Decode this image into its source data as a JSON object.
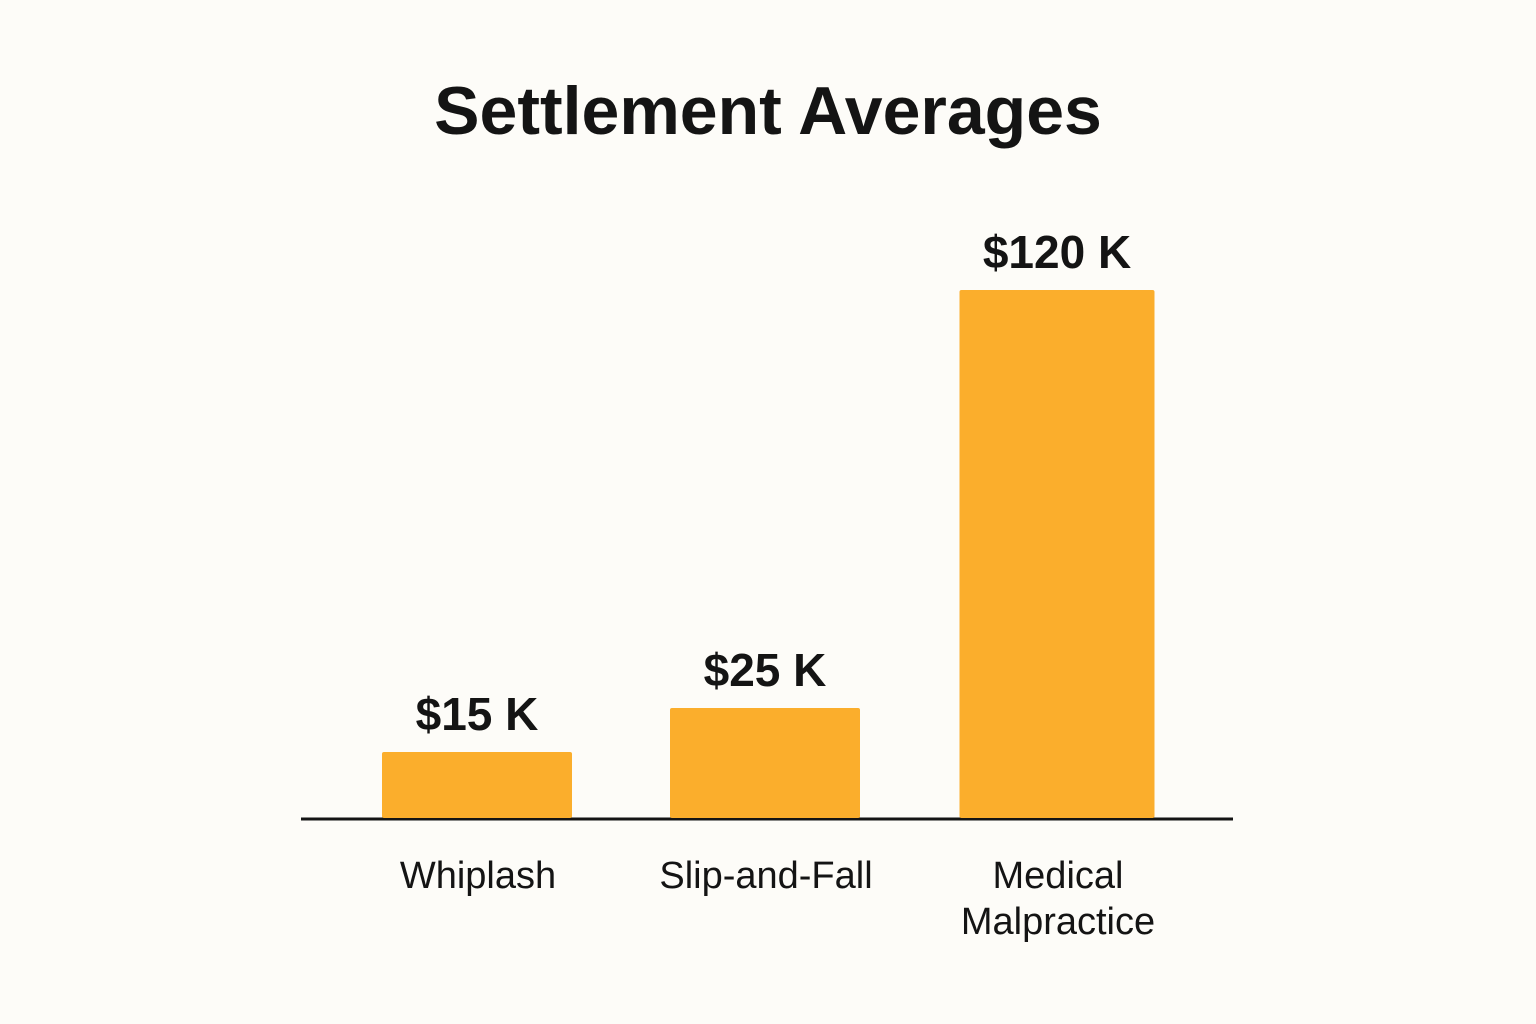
{
  "chart_data": {
    "type": "bar",
    "title": "Settlement Averages",
    "categories": [
      "Whiplash",
      "Slip-and-Fall",
      "Medical Malpractice"
    ],
    "category_lines": [
      [
        "Whiplash"
      ],
      [
        "Slip-and-Fall"
      ],
      [
        "Medical",
        "Malpractice"
      ]
    ],
    "values": [
      15,
      25,
      120
    ],
    "value_labels": [
      "$15 K",
      "$25 K",
      "$120 K"
    ],
    "unit": "thousand USD",
    "xlabel": "",
    "ylabel": "",
    "ylim": [
      0,
      120
    ],
    "grid": false,
    "bar_color": "#fbae2c",
    "axis_color": "#141414",
    "text_color": "#141414",
    "background": "#fdfcf8"
  }
}
